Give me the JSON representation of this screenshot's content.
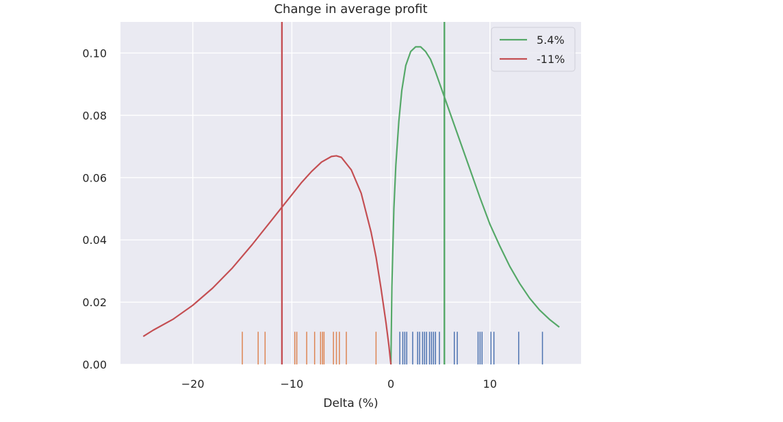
{
  "chart_data": {
    "type": "line",
    "title": "Change in average profit",
    "xlabel": "Delta (%)",
    "ylabel": "",
    "xlim": [
      -27.3,
      19.2
    ],
    "ylim": [
      0,
      0.11
    ],
    "xticks": [
      -20,
      -10,
      0,
      10
    ],
    "xtick_labels": [
      "−20",
      "−10",
      "0",
      "10"
    ],
    "yticks": [
      0,
      0.02,
      0.04,
      0.06,
      0.08,
      0.1
    ],
    "ytick_labels": [
      "0.00",
      "0.02",
      "0.04",
      "0.06",
      "0.08",
      "0.10"
    ],
    "grid": true,
    "legend_placement": "top-right",
    "colors": {
      "background": "#eaeaf2",
      "grid": "#ffffff",
      "green": "#55a868",
      "red": "#c44e52",
      "orange": "#dd8452",
      "blue": "#4c72b0"
    },
    "series": [
      {
        "name": "5.4%",
        "color": "#55a868",
        "x": [
          0,
          0.1,
          0.3,
          0.5,
          0.8,
          1.1,
          1.5,
          2.0,
          2.5,
          3.0,
          3.5,
          4.0,
          4.5,
          5.0,
          5.5,
          6.0,
          7.0,
          8.0,
          9.0,
          10.0,
          11.0,
          12.0,
          13.0,
          14.0,
          15.0,
          16.0,
          17.0
        ],
        "y": [
          0,
          0.025,
          0.05,
          0.064,
          0.078,
          0.088,
          0.096,
          0.1005,
          0.102,
          0.102,
          0.1005,
          0.098,
          0.094,
          0.0895,
          0.085,
          0.0805,
          0.0715,
          0.0625,
          0.0535,
          0.045,
          0.038,
          0.0315,
          0.026,
          0.0213,
          0.0175,
          0.0145,
          0.012
        ],
        "mean_line": 5.4
      },
      {
        "name": "-11%",
        "color": "#c44e52",
        "x": [
          -25,
          -24,
          -22,
          -20,
          -18,
          -16,
          -14,
          -12,
          -11,
          -10,
          -9,
          -8,
          -7,
          -6,
          -5.5,
          -5,
          -4,
          -3,
          -2,
          -1.5,
          -1,
          -0.5,
          -0.2,
          0
        ],
        "y": [
          0.009,
          0.011,
          0.0145,
          0.019,
          0.0245,
          0.031,
          0.0385,
          0.0465,
          0.0505,
          0.0545,
          0.0585,
          0.062,
          0.065,
          0.0668,
          0.067,
          0.0665,
          0.0625,
          0.055,
          0.0425,
          0.0345,
          0.0245,
          0.0135,
          0.006,
          0
        ],
        "mean_line": -11
      }
    ],
    "rug": [
      {
        "color": "#dd8452",
        "height": 0.0105,
        "x": [
          -15.0,
          -13.4,
          -12.7,
          -9.7,
          -9.5,
          -8.5,
          -7.7,
          -7.1,
          -6.9,
          -6.75,
          -5.8,
          -5.5,
          -5.2,
          -4.5,
          -1.5
        ]
      },
      {
        "color": "#4c72b0",
        "height": 0.0105,
        "x": [
          0.9,
          1.2,
          1.4,
          1.6,
          2.2,
          2.7,
          2.9,
          3.2,
          3.4,
          3.6,
          3.9,
          4.1,
          4.3,
          4.5,
          4.9,
          6.4,
          6.7,
          8.8,
          9.0,
          9.2,
          10.1,
          10.4,
          12.9,
          15.3
        ]
      }
    ]
  }
}
